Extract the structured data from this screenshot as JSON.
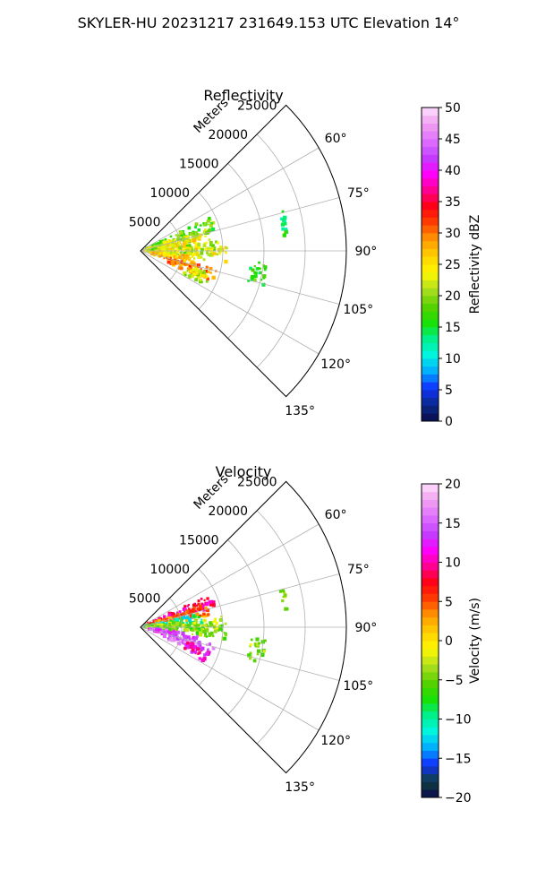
{
  "suptitle": "SKYLER-HU  20231217  231649.153 UTC Elevation 14°",
  "chart_data": [
    {
      "type": "heatmap",
      "subtype": "polar-sector radar PPI",
      "title": "Reflectivity",
      "radial_label": "Meters",
      "radial_ticks": [
        5000,
        10000,
        15000,
        20000,
        25000
      ],
      "r_max": 25000,
      "angle_range_deg": [
        45,
        135
      ],
      "angle_ticks": [
        60,
        75,
        90,
        105,
        120,
        135
      ],
      "grid": true,
      "colorbar": {
        "label": "Reflectivity dBZ",
        "range": [
          0,
          50
        ],
        "ticks": [
          0,
          5,
          10,
          15,
          20,
          25,
          30,
          35,
          40,
          45,
          50
        ],
        "stops": [
          "#0a0a4a",
          "#0a2a8a",
          "#1030ff",
          "#00aaff",
          "#00f5e0",
          "#00f08a",
          "#18e000",
          "#5ad000",
          "#b0e020",
          "#fff800",
          "#ffd000",
          "#ff9a00",
          "#ff4000",
          "#ff0010",
          "#ff0090",
          "#ff00ff",
          "#c040ff",
          "#e070ff",
          "#f0a0f0",
          "#ffe0ff"
        ]
      },
      "echoes": [
        {
          "az": 70,
          "r": [
            500,
            9500
          ],
          "value": 18
        },
        {
          "az": 76,
          "r": [
            500,
            8500
          ],
          "value": 22
        },
        {
          "az": 82,
          "r": [
            500,
            7500
          ],
          "value": 25
        },
        {
          "az": 88,
          "r": [
            500,
            10000
          ],
          "value": 21
        },
        {
          "az": 93,
          "r": [
            2000,
            10500
          ],
          "value": 24
        },
        {
          "az": 102,
          "r": [
            1000,
            7000
          ],
          "value": 26
        },
        {
          "az": 108,
          "r": [
            3000,
            9500
          ],
          "value": 30
        },
        {
          "az": 113,
          "r": [
            6000,
            9000
          ],
          "value": 22
        },
        {
          "az": 101,
          "r": [
            13500,
            15500
          ],
          "value": 17
        },
        {
          "az": 80,
          "r": [
            17500,
            18000
          ],
          "value": 15
        }
      ]
    },
    {
      "type": "heatmap",
      "subtype": "polar-sector radar PPI",
      "title": "Velocity",
      "radial_label": "Meters",
      "radial_ticks": [
        5000,
        10000,
        15000,
        20000,
        25000
      ],
      "r_max": 25000,
      "angle_range_deg": [
        45,
        135
      ],
      "angle_ticks": [
        60,
        75,
        90,
        105,
        120,
        135
      ],
      "grid": true,
      "colorbar": {
        "label": "Velocity (m/s)",
        "range": [
          -20,
          20
        ],
        "ticks": [
          -20,
          -15,
          -10,
          -5,
          0,
          5,
          10,
          15,
          20
        ],
        "stops": [
          "#0a0a4a",
          "#104040",
          "#1030ff",
          "#00aaff",
          "#00f5e0",
          "#00f08a",
          "#18e000",
          "#5ad000",
          "#b0e020",
          "#fff800",
          "#ffd000",
          "#ff9a00",
          "#ff4000",
          "#ff0010",
          "#ff0090",
          "#ff00ff",
          "#c040ff",
          "#e070ff",
          "#f0a0f0",
          "#ffe0ff"
        ]
      },
      "echoes": [
        {
          "az": 70,
          "r": [
            500,
            9500
          ],
          "value": 9
        },
        {
          "az": 76,
          "r": [
            500,
            8500
          ],
          "value": 4
        },
        {
          "az": 82,
          "r": [
            500,
            7500
          ],
          "value": -10
        },
        {
          "az": 88,
          "r": [
            500,
            10000
          ],
          "value": -3
        },
        {
          "az": 93,
          "r": [
            2000,
            10500
          ],
          "value": -5
        },
        {
          "az": 102,
          "r": [
            1000,
            7000
          ],
          "value": 14
        },
        {
          "az": 108,
          "r": [
            3000,
            9500
          ],
          "value": 16
        },
        {
          "az": 113,
          "r": [
            6000,
            9000
          ],
          "value": 11
        },
        {
          "az": 101,
          "r": [
            13500,
            15500
          ],
          "value": -4
        },
        {
          "az": 80,
          "r": [
            17500,
            18000
          ],
          "value": -4
        }
      ]
    }
  ]
}
